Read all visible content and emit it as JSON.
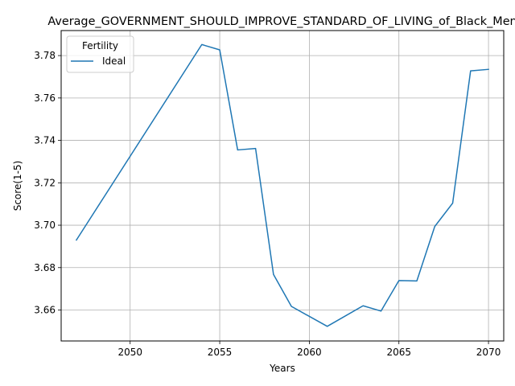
{
  "chart_data": {
    "type": "line",
    "title": "Average_GOVERNMENT_SHOULD_IMPROVE_STANDARD_OF_LIVING_of_Black_Men",
    "xlabel": "Years",
    "ylabel": "Score(1-5)",
    "xlim": [
      2046.15,
      2070.85
    ],
    "ylim": [
      3.6454,
      3.7918
    ],
    "x_ticks": [
      2050,
      2055,
      2060,
      2065,
      2070
    ],
    "y_ticks": [
      3.66,
      3.68,
      3.7,
      3.72,
      3.74,
      3.76,
      3.78
    ],
    "y_tick_labels": [
      "3.66",
      "3.68",
      "3.70",
      "3.72",
      "3.74",
      "3.76",
      "3.78"
    ],
    "grid": true,
    "legend": {
      "title": "Fertility",
      "placement": "top-left"
    },
    "series": [
      {
        "name": "Ideal",
        "color": "#1f77b4",
        "x": [
          2047,
          2054,
          2055,
          2056,
          2057,
          2058,
          2059,
          2061,
          2063,
          2064,
          2065,
          2066,
          2067,
          2068,
          2069,
          2070
        ],
        "y": [
          3.693,
          3.7852,
          3.7827,
          3.7355,
          3.7362,
          3.6768,
          3.6617,
          3.6523,
          3.662,
          3.6595,
          3.6739,
          3.6737,
          3.6994,
          3.7104,
          3.7728,
          3.7735
        ]
      }
    ]
  }
}
